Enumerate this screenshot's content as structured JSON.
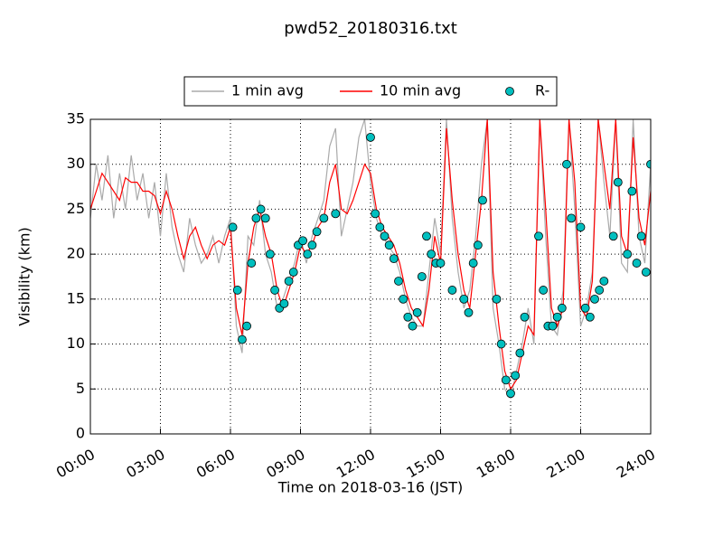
{
  "chart_data": {
    "type": "line",
    "title": "pwd52_20180316.txt",
    "xlabel": "Time on 2018-03-16 (JST)",
    "ylabel": "Visibility (km)",
    "xlim": [
      0,
      24
    ],
    "ylim": [
      0,
      35
    ],
    "xticks": [
      {
        "value": 0,
        "label": "00:00"
      },
      {
        "value": 3,
        "label": "03:00"
      },
      {
        "value": 6,
        "label": "06:00"
      },
      {
        "value": 9,
        "label": "09:00"
      },
      {
        "value": 12,
        "label": "12:00"
      },
      {
        "value": 15,
        "label": "15:00"
      },
      {
        "value": 18,
        "label": "18:00"
      },
      {
        "value": 21,
        "label": "21:00"
      },
      {
        "value": 24,
        "label": "24:00"
      }
    ],
    "yticks": [
      0,
      5,
      10,
      15,
      20,
      25,
      30,
      35
    ],
    "grid": true,
    "legend": "top",
    "series": [
      {
        "name": "1 min avg",
        "color": "#aaaaaa",
        "style": "line",
        "x": [
          0,
          0.25,
          0.5,
          0.75,
          1,
          1.25,
          1.5,
          1.75,
          2,
          2.25,
          2.5,
          2.75,
          3,
          3.25,
          3.5,
          3.75,
          4,
          4.25,
          4.5,
          4.75,
          5,
          5.25,
          5.5,
          5.75,
          6,
          6.25,
          6.5,
          6.75,
          7,
          7.25,
          7.5,
          7.75,
          8,
          8.25,
          8.5,
          8.75,
          9,
          9.25,
          9.5,
          9.75,
          10,
          10.25,
          10.5,
          10.75,
          11,
          11.25,
          11.5,
          11.75,
          12,
          12.25,
          12.5,
          12.75,
          13,
          13.25,
          13.5,
          13.75,
          14,
          14.25,
          14.5,
          14.75,
          15,
          15.25,
          15.5,
          15.75,
          16,
          16.25,
          16.5,
          16.75,
          17,
          17.25,
          17.5,
          17.75,
          18,
          18.25,
          18.5,
          18.75,
          19,
          19.25,
          19.5,
          19.75,
          20,
          20.25,
          20.5,
          20.75,
          21,
          21.25,
          21.5,
          21.75,
          22,
          22.25,
          22.5,
          22.75,
          23,
          23.25,
          23.5,
          23.75,
          24
        ],
        "values": [
          24,
          30,
          26,
          31,
          24,
          29,
          25,
          31,
          26,
          29,
          24,
          28,
          22,
          29,
          23,
          20,
          18,
          24,
          21,
          19,
          20,
          22,
          19,
          22,
          24,
          12,
          9,
          22,
          21,
          26,
          20,
          18,
          14,
          15,
          17,
          19,
          22,
          19,
          22,
          24,
          26,
          32,
          34,
          22,
          25,
          28,
          33,
          35,
          28,
          24,
          22,
          21,
          20,
          18,
          15,
          13,
          12,
          12,
          18,
          24,
          20,
          35,
          24,
          18,
          14,
          16,
          22,
          30,
          35,
          14,
          10,
          5,
          4,
          7,
          10,
          14,
          10,
          35,
          22,
          12,
          11,
          16,
          35,
          25,
          12,
          14,
          18,
          35,
          28,
          22,
          35,
          19,
          18,
          35,
          22,
          19,
          30
        ]
      },
      {
        "name": "10 min avg",
        "color": "#ff0000",
        "style": "line",
        "x": [
          0,
          0.25,
          0.5,
          0.75,
          1,
          1.25,
          1.5,
          1.75,
          2,
          2.25,
          2.5,
          2.75,
          3,
          3.25,
          3.5,
          3.75,
          4,
          4.25,
          4.5,
          4.75,
          5,
          5.25,
          5.5,
          5.75,
          6,
          6.25,
          6.5,
          6.75,
          7,
          7.25,
          7.5,
          7.75,
          8,
          8.25,
          8.5,
          8.75,
          9,
          9.25,
          9.5,
          9.75,
          10,
          10.25,
          10.5,
          10.75,
          11,
          11.25,
          11.5,
          11.75,
          12,
          12.25,
          12.5,
          12.75,
          13,
          13.25,
          13.5,
          13.75,
          14,
          14.25,
          14.5,
          14.75,
          15,
          15.25,
          15.5,
          15.75,
          16,
          16.25,
          16.5,
          16.75,
          17,
          17.25,
          17.5,
          17.75,
          18,
          18.25,
          18.5,
          18.75,
          19,
          19.25,
          19.5,
          19.75,
          20,
          20.25,
          20.5,
          20.75,
          21,
          21.25,
          21.5,
          21.75,
          22,
          22.25,
          22.5,
          22.75,
          23,
          23.25,
          23.5,
          23.75,
          24
        ],
        "values": [
          25,
          27,
          29,
          28,
          27,
          26,
          28.5,
          28,
          28,
          27,
          27,
          26.5,
          24.5,
          27,
          25,
          22,
          19.5,
          22,
          23,
          21,
          19.5,
          21,
          21.5,
          21,
          23,
          14,
          11,
          19,
          23,
          25,
          22,
          20,
          16,
          14,
          16,
          18,
          21,
          20,
          21,
          23,
          24,
          28,
          30,
          25,
          24.5,
          26,
          28,
          30,
          29,
          25,
          23,
          22,
          21,
          19,
          16,
          14,
          13,
          12,
          16,
          22,
          19,
          34,
          26,
          20,
          16,
          14,
          20,
          26,
          35,
          18,
          12,
          7,
          5,
          6,
          9,
          12,
          11,
          35,
          25,
          14,
          12,
          14,
          35,
          28,
          14,
          13,
          17,
          35,
          30,
          25,
          35,
          22,
          20,
          33,
          24,
          21,
          27
        ]
      },
      {
        "name": "R-",
        "color": "#00bfbf",
        "style": "marker",
        "x": [
          6.1,
          6.3,
          6.5,
          6.7,
          6.9,
          7.1,
          7.3,
          7.5,
          7.7,
          7.9,
          8.1,
          8.3,
          8.5,
          8.7,
          8.9,
          9.1,
          9.3,
          9.5,
          9.7,
          10.0,
          10.5,
          12.0,
          12.2,
          12.4,
          12.6,
          12.8,
          13.0,
          13.2,
          13.4,
          13.6,
          13.8,
          14.0,
          14.2,
          14.4,
          14.6,
          14.8,
          15.0,
          15.5,
          16.0,
          16.2,
          16.4,
          16.6,
          16.8,
          17.4,
          17.6,
          17.8,
          18.0,
          18.2,
          18.4,
          18.6,
          19.2,
          19.4,
          19.6,
          19.8,
          20.0,
          20.2,
          20.4,
          20.6,
          21.0,
          21.2,
          21.4,
          21.6,
          21.8,
          22.0,
          22.4,
          22.6,
          23.0,
          23.2,
          23.4,
          23.6,
          23.8,
          24.0
        ],
        "values": [
          23,
          16,
          10.5,
          12,
          19,
          24,
          25,
          24,
          20,
          16,
          14,
          14.5,
          17,
          18,
          21,
          21.5,
          20,
          21,
          22.5,
          24,
          24.5,
          33,
          24.5,
          23,
          22,
          21,
          19.5,
          17,
          15,
          13,
          12,
          13.5,
          17.5,
          22,
          20,
          19,
          19,
          16,
          15,
          13.5,
          19,
          21,
          26,
          15,
          10,
          6,
          4.5,
          6.5,
          9,
          13,
          22,
          16,
          12,
          12,
          13,
          14,
          30,
          24,
          23,
          14,
          13,
          15,
          16,
          17,
          22,
          28,
          20,
          27,
          19,
          22,
          18,
          30
        ]
      }
    ]
  }
}
